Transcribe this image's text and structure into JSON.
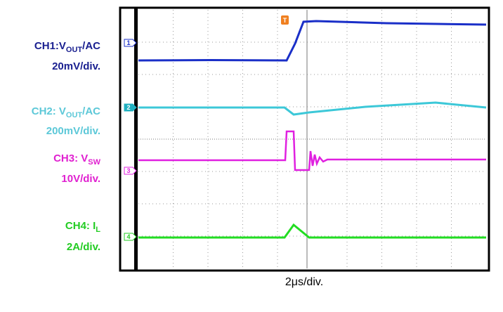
{
  "channels": [
    {
      "label": {
        "prefix": "CH1:V",
        "sub": "OUT",
        "suffix": "/AC"
      },
      "scale": "20mV/div.",
      "marker": "1"
    },
    {
      "label": {
        "prefix": "CH2: V",
        "sub": "OUT",
        "suffix": "/AC"
      },
      "scale": "200mV/div.",
      "marker": "2"
    },
    {
      "label": {
        "prefix": "CH3: V",
        "sub": "SW"
      },
      "scale": "10V/div.",
      "marker": "3"
    },
    {
      "label": {
        "prefix": "CH4: I",
        "sub": "L"
      },
      "scale": "2A/div.",
      "marker": "4"
    }
  ],
  "trigger": "T",
  "timebase": "2μs/div."
}
